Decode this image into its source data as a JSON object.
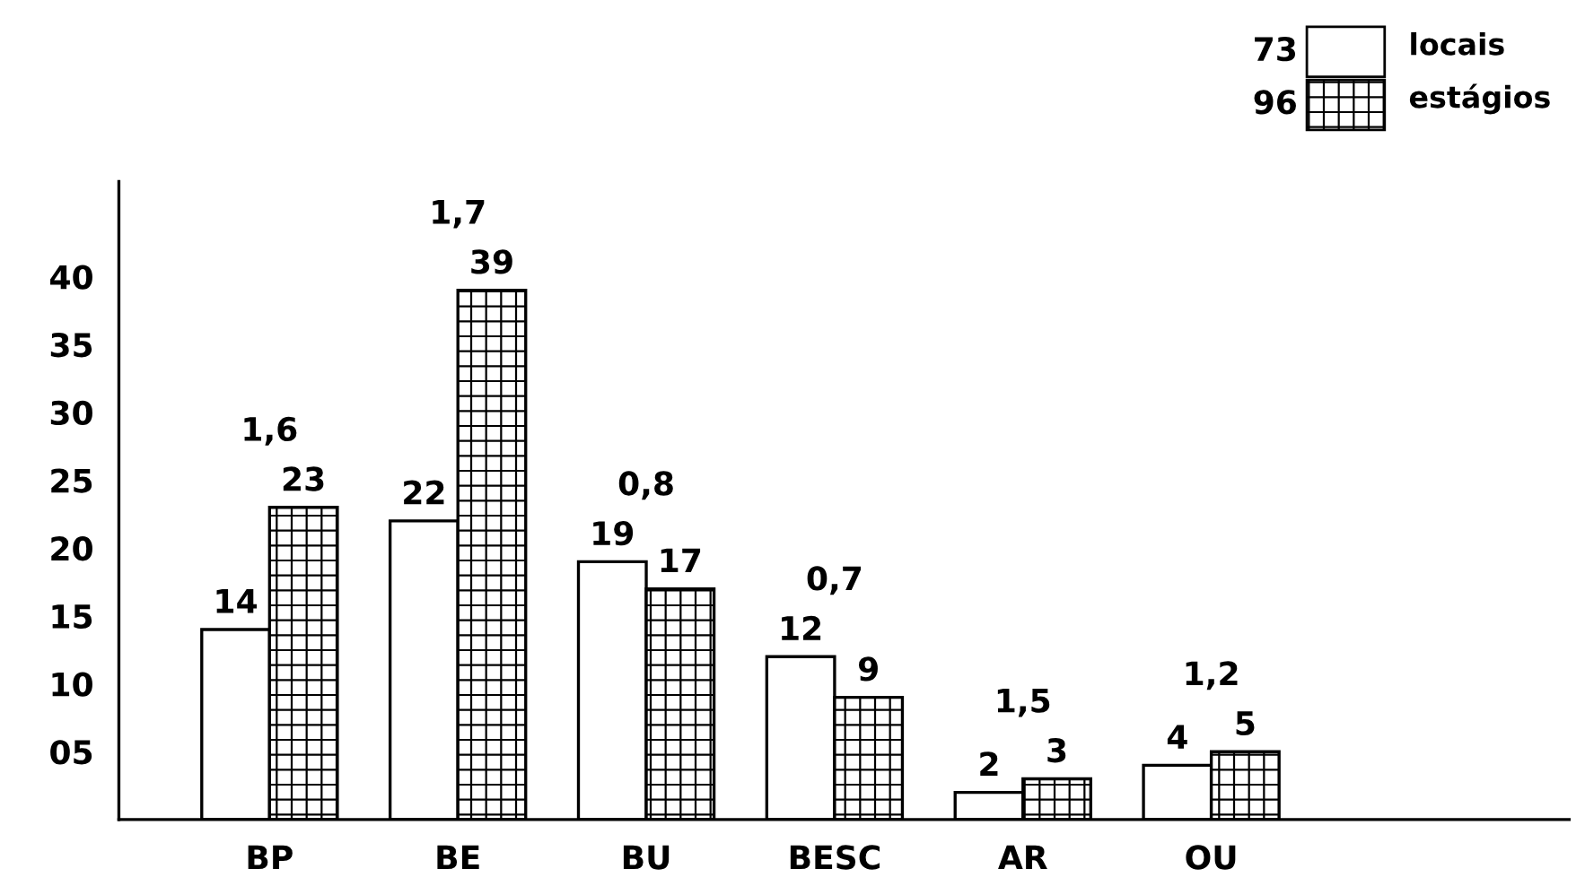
{
  "chart_data": {
    "type": "bar",
    "categories": [
      "BP",
      "BE",
      "BU",
      "BESC",
      "AR",
      "OU"
    ],
    "series": [
      {
        "name": "locais",
        "color": "#ffffff",
        "values": [
          14,
          22,
          19,
          12,
          2,
          4
        ]
      },
      {
        "name": "estágios",
        "color": "#000000",
        "values": [
          23,
          39,
          17,
          9,
          3,
          5
        ]
      }
    ],
    "ylim": [
      0,
      47
    ],
    "yticks": [
      {
        "value": 5,
        "label": "05"
      },
      10,
      15,
      20,
      25,
      30,
      35,
      40
    ],
    "data_labels": true,
    "grid": false,
    "legend": "top right",
    "annotations": [
      "1,6",
      "1,7",
      "0,8",
      "0,7",
      "1,5",
      "1,2",
      "73",
      "96"
    ]
  }
}
